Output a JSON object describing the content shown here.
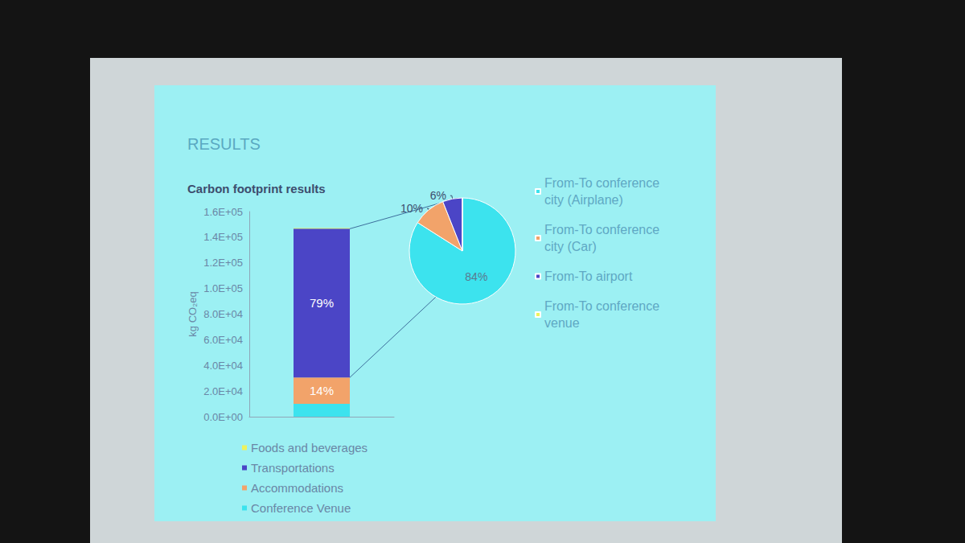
{
  "heading": "RESULTS",
  "chart_data": [
    {
      "type": "bar",
      "title": "Carbon footprint results",
      "y_label": "kg CO₂eq",
      "stacked": true,
      "grid": false,
      "legend": "bottom left",
      "categories": [
        null
      ],
      "ylim": [
        0,
        160000
      ],
      "yticks": [
        {
          "value": 0,
          "label": "0.0E+00"
        },
        {
          "value": 20000,
          "label": "2.0E+04"
        },
        {
          "value": 40000,
          "label": "4.0E+04"
        },
        {
          "value": 60000,
          "label": "6.0E+04"
        },
        {
          "value": 80000,
          "label": "8.0E+04"
        },
        {
          "value": 100000,
          "label": "1.0E+05"
        },
        {
          "value": 120000,
          "label": "1.2E+05"
        },
        {
          "value": 140000,
          "label": "1.4E+05"
        },
        {
          "value": 160000,
          "label": "1.6E+05"
        }
      ],
      "series": [
        {
          "name": "Foods and beverages",
          "color": "#eef25c",
          "values": [
            500
          ]
        },
        {
          "name": "Transportations",
          "color": "#4b45c6",
          "values": [
            116000
          ],
          "share_label": "79%"
        },
        {
          "name": "Accommodations",
          "color": "#f2a36a",
          "values": [
            20600
          ],
          "share_label": "14%"
        },
        {
          "name": "Conference Venue",
          "color": "#3ce3ee",
          "values": [
            10000
          ]
        }
      ]
    },
    {
      "type": "pie",
      "detail_of": "Transportations",
      "legend": "right",
      "data_labels": true,
      "categories": [
        "From-To conference city (Airplane)",
        "From-To conference city (Car)",
        "From-To airport",
        "From-To conference venue"
      ],
      "values": [
        84,
        10,
        6,
        0
      ],
      "value_labels": [
        "84%",
        "10%",
        "6%",
        null
      ],
      "colors": [
        "#3ce3ee",
        "#f2a36a",
        "#4b45c6",
        "#eef25c"
      ]
    }
  ]
}
